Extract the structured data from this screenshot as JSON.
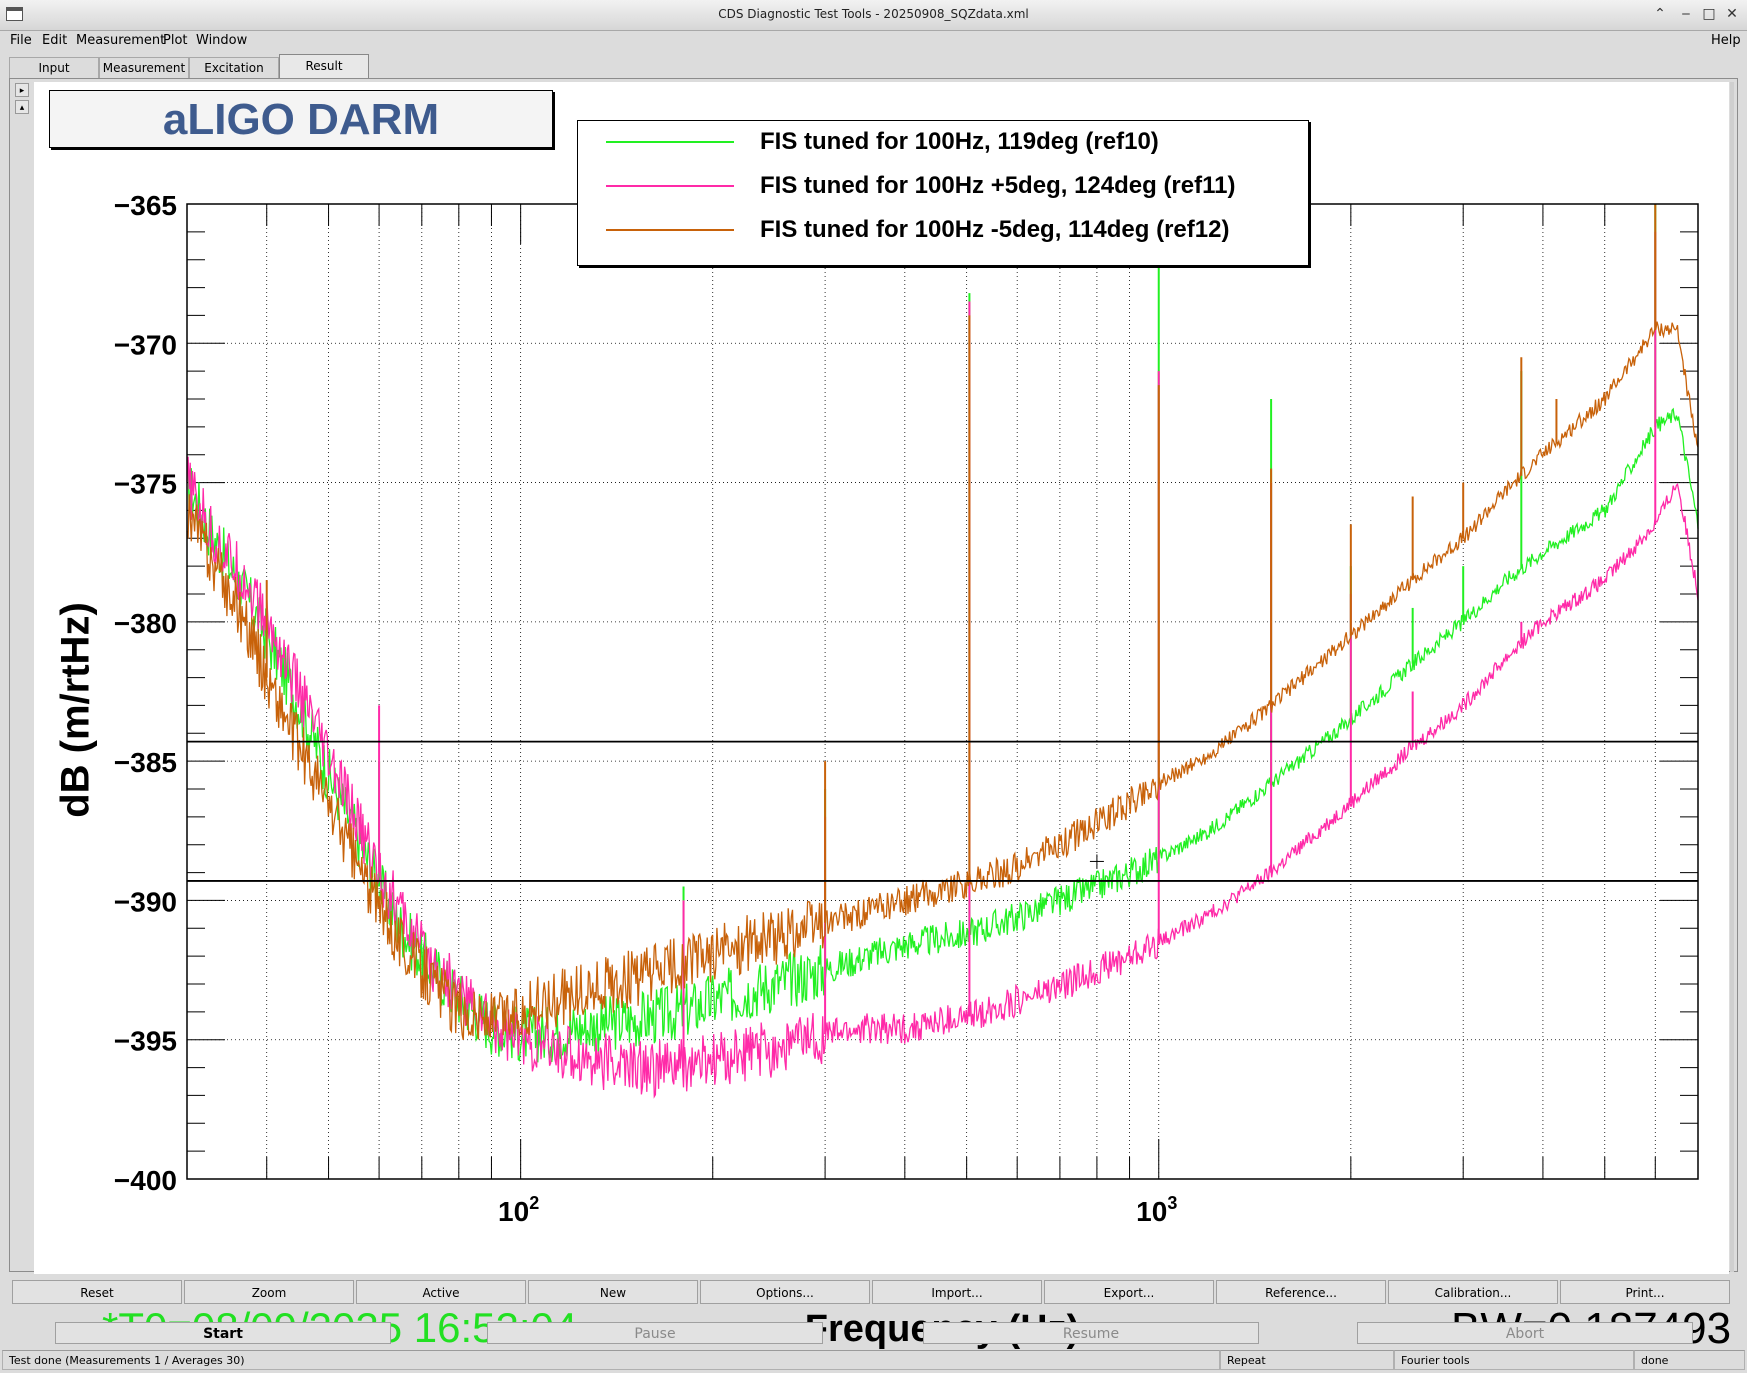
{
  "window": {
    "title": "CDS Diagnostic Test Tools - 20250908_SQZdata.xml"
  },
  "menu": [
    "File",
    "Edit",
    "Measurement",
    "Plot",
    "Window"
  ],
  "menu_help": "Help",
  "tabs": [
    "Input",
    "Measurement",
    "Excitation",
    "Result"
  ],
  "active_tab": "Result",
  "pad_buttons": [
    "▸",
    "▴"
  ],
  "graph": {
    "title": "aLIGO DARM",
    "t0": "*T0=08/09/2025 16:52:04",
    "bw": "BW=0.187493"
  },
  "chart_data": {
    "type": "line",
    "xlabel": "Frequency (Hz)",
    "ylabel": "dB (m/rtHz)",
    "x_scale": "log",
    "xlim": [
      30,
      7000
    ],
    "ylim": [
      -400,
      -365
    ],
    "x_ticks": [
      {
        "value": 100,
        "base": "10",
        "exp": "2"
      },
      {
        "value": 1000,
        "base": "10",
        "exp": "3"
      }
    ],
    "y_ticks": [
      "−365",
      "−370",
      "−375",
      "−380",
      "−385",
      "−390",
      "−395",
      "−400"
    ],
    "y_tick_values": [
      -365,
      -370,
      -375,
      -380,
      -385,
      -390,
      -395,
      -400
    ],
    "grid": true,
    "legend_position": "top-center",
    "horizontal_markers": [
      -384.3,
      -389.3
    ],
    "cursor": {
      "x": 800,
      "y": -388.6
    },
    "series": [
      {
        "name": "FIS tuned for 100Hz, 119deg (ref10)",
        "color": "#22f022",
        "x": [
          30,
          33,
          37,
          40,
          45,
          50,
          55,
          60,
          65,
          70,
          80,
          90,
          100,
          110,
          130,
          150,
          180,
          200,
          250,
          300,
          350,
          400,
          500,
          600,
          700,
          800,
          900,
          1000,
          1200,
          1500,
          2000,
          2500,
          3000,
          3500,
          4000,
          5000,
          6000,
          6500,
          7000
        ],
        "y": [
          -375,
          -377,
          -379,
          -380.5,
          -383,
          -385.5,
          -387.5,
          -389.5,
          -391,
          -392,
          -393.5,
          -394.5,
          -394.8,
          -394.8,
          -394.5,
          -394.3,
          -394.0,
          -393.6,
          -393.0,
          -392.5,
          -392.0,
          -391.6,
          -391.2,
          -390.6,
          -390.0,
          -389.5,
          -389.0,
          -388.5,
          -387.5,
          -385.8,
          -383.5,
          -381.5,
          -380.0,
          -378.5,
          -377.5,
          -376.0,
          -373.0,
          -372.5,
          -376.5
        ],
        "spikes": [
          {
            "x": 60,
            "y": -385
          },
          {
            "x": 180,
            "y": -389.5
          },
          {
            "x": 300,
            "y": -386
          },
          {
            "x": 505,
            "y": -368.2
          },
          {
            "x": 1000,
            "y": -367
          },
          {
            "x": 1500,
            "y": -372
          },
          {
            "x": 2000,
            "y": -378
          },
          {
            "x": 2500,
            "y": -379.5
          },
          {
            "x": 3000,
            "y": -378
          },
          {
            "x": 3700,
            "y": -371
          },
          {
            "x": 6000,
            "y": -365
          }
        ]
      },
      {
        "name": "FIS tuned for 100Hz +5deg, 124deg (ref11)",
        "color": "#ff2aa8",
        "x": [
          30,
          33,
          37,
          40,
          45,
          50,
          55,
          60,
          65,
          70,
          80,
          90,
          100,
          110,
          130,
          150,
          180,
          200,
          250,
          300,
          350,
          400,
          500,
          600,
          700,
          800,
          900,
          1000,
          1200,
          1500,
          2000,
          2500,
          3000,
          3500,
          4000,
          5000,
          6000,
          6500,
          7000
        ],
        "y": [
          -375,
          -377,
          -378.5,
          -380,
          -382.5,
          -385,
          -387,
          -389,
          -390.5,
          -391.8,
          -393.3,
          -394.4,
          -395.0,
          -395.3,
          -395.7,
          -396.0,
          -396.0,
          -395.8,
          -395.3,
          -394.8,
          -394.6,
          -394.6,
          -394.2,
          -393.6,
          -393.1,
          -392.5,
          -392.0,
          -391.5,
          -390.5,
          -389.0,
          -386.5,
          -384.5,
          -383.0,
          -381.3,
          -380.0,
          -378.5,
          -376.5,
          -375.0,
          -379.0
        ],
        "spikes": [
          {
            "x": 60,
            "y": -383
          },
          {
            "x": 180,
            "y": -390
          },
          {
            "x": 300,
            "y": -387
          },
          {
            "x": 505,
            "y": -368.5
          },
          {
            "x": 1000,
            "y": -371
          },
          {
            "x": 1500,
            "y": -375
          },
          {
            "x": 2000,
            "y": -379
          },
          {
            "x": 2500,
            "y": -382.5
          },
          {
            "x": 3700,
            "y": -380
          },
          {
            "x": 6000,
            "y": -366
          }
        ]
      },
      {
        "name": "FIS tuned for 100Hz -5deg, 114deg (ref12)",
        "color": "#c8620a",
        "x": [
          30,
          33,
          37,
          40,
          45,
          50,
          55,
          60,
          65,
          70,
          80,
          90,
          100,
          110,
          130,
          150,
          180,
          200,
          250,
          300,
          350,
          400,
          500,
          600,
          700,
          800,
          900,
          1000,
          1200,
          1500,
          2000,
          2500,
          3000,
          3500,
          4000,
          5000,
          6000,
          6500,
          7000
        ],
        "y": [
          -376,
          -378,
          -380,
          -382,
          -384.5,
          -386.5,
          -388.5,
          -390.3,
          -391.5,
          -392.5,
          -394.0,
          -394.3,
          -394.0,
          -393.6,
          -393.2,
          -392.8,
          -392.3,
          -391.9,
          -391.3,
          -390.8,
          -390.4,
          -390.0,
          -389.4,
          -388.8,
          -388.0,
          -387.2,
          -386.5,
          -385.8,
          -384.8,
          -383.0,
          -380.5,
          -378.5,
          -377.0,
          -375.3,
          -374.0,
          -372.0,
          -369.5,
          -369.5,
          -374.0
        ],
        "spikes": [
          {
            "x": 40,
            "y": -378.5
          },
          {
            "x": 300,
            "y": -385
          },
          {
            "x": 505,
            "y": -369
          },
          {
            "x": 1000,
            "y": -371.5
          },
          {
            "x": 1500,
            "y": -374.5
          },
          {
            "x": 2000,
            "y": -376.5
          },
          {
            "x": 2500,
            "y": -375.5
          },
          {
            "x": 3000,
            "y": -375
          },
          {
            "x": 3700,
            "y": -370.5
          },
          {
            "x": 4200,
            "y": -372
          },
          {
            "x": 6000,
            "y": -365
          }
        ]
      }
    ]
  },
  "controls": [
    "Reset",
    "Zoom",
    "Active",
    "New",
    "Options...",
    "Import...",
    "Export...",
    "Reference...",
    "Calibration...",
    "Print..."
  ],
  "run_buttons": [
    {
      "label": "Start",
      "enabled": true
    },
    {
      "label": "Pause",
      "enabled": false
    },
    {
      "label": "Resume",
      "enabled": false
    },
    {
      "label": "Abort",
      "enabled": false
    }
  ],
  "status": {
    "message": "Test done (Measurements 1 / Averages 30)",
    "mode": "Repeat",
    "tool": "Fourier tools",
    "state": "done"
  }
}
